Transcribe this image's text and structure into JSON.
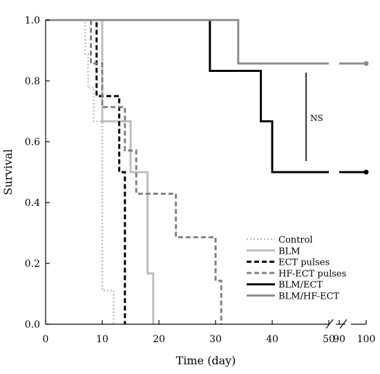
{
  "chart_data": {
    "type": "line",
    "subtype": "kaplan-meier step survival curves",
    "title": "",
    "xlabel": "Time (day)",
    "ylabel": "Survival",
    "xlim": [
      0,
      100
    ],
    "ylim": [
      0,
      1.0
    ],
    "x_axis_break": "broken between 50 and 90",
    "x_ticks": [
      0,
      10,
      20,
      30,
      40,
      50,
      90,
      100
    ],
    "y_ticks": [
      "0.0",
      "0.2",
      "0.4",
      "0.6",
      "0.8",
      "1.0"
    ],
    "grid": false,
    "legend_position": "bottom-right",
    "annotation": {
      "text": "NS",
      "between": [
        "BLM/ECT",
        "BLM/HF-ECT"
      ]
    },
    "series": [
      {
        "name": "Control",
        "style": "dotted",
        "color": "#bdbdbd",
        "steps": [
          [
            0,
            1.0
          ],
          [
            7,
            0.889
          ],
          [
            7.5,
            0.778
          ],
          [
            8.5,
            0.667
          ],
          [
            10,
            0.111
          ],
          [
            12,
            0.0
          ]
        ]
      },
      {
        "name": "BLM",
        "style": "solid",
        "color": "#bdbdbd",
        "steps": [
          [
            0,
            1.0
          ],
          [
            10,
            0.667
          ],
          [
            12,
            0.667
          ],
          [
            15,
            0.5
          ],
          [
            18,
            0.167
          ],
          [
            19,
            0.0
          ]
        ]
      },
      {
        "name": "ECT pulses",
        "style": "dashed",
        "color": "#000000",
        "steps": [
          [
            0,
            1.0
          ],
          [
            9,
            0.75
          ],
          [
            13,
            0.5
          ],
          [
            14,
            0.0
          ]
        ]
      },
      {
        "name": "HF-ECT pulses",
        "style": "dashed",
        "color": "#808080",
        "steps": [
          [
            0,
            1.0
          ],
          [
            8,
            0.857
          ],
          [
            10,
            0.714
          ],
          [
            14,
            0.571
          ],
          [
            16,
            0.429
          ],
          [
            23,
            0.286
          ],
          [
            30,
            0.143
          ],
          [
            31,
            0.0
          ]
        ]
      },
      {
        "name": "BLM/ECT",
        "style": "solid",
        "color": "#000000",
        "steps": [
          [
            0,
            1.0
          ],
          [
            29,
            0.833
          ],
          [
            38,
            0.667
          ],
          [
            40,
            0.5
          ]
        ],
        "end_x": 100
      },
      {
        "name": "BLM/HF-ECT",
        "style": "solid",
        "color": "#8c8c8c",
        "steps": [
          [
            0,
            1.0
          ],
          [
            34,
            0.857
          ]
        ],
        "end_x": 100
      }
    ]
  }
}
